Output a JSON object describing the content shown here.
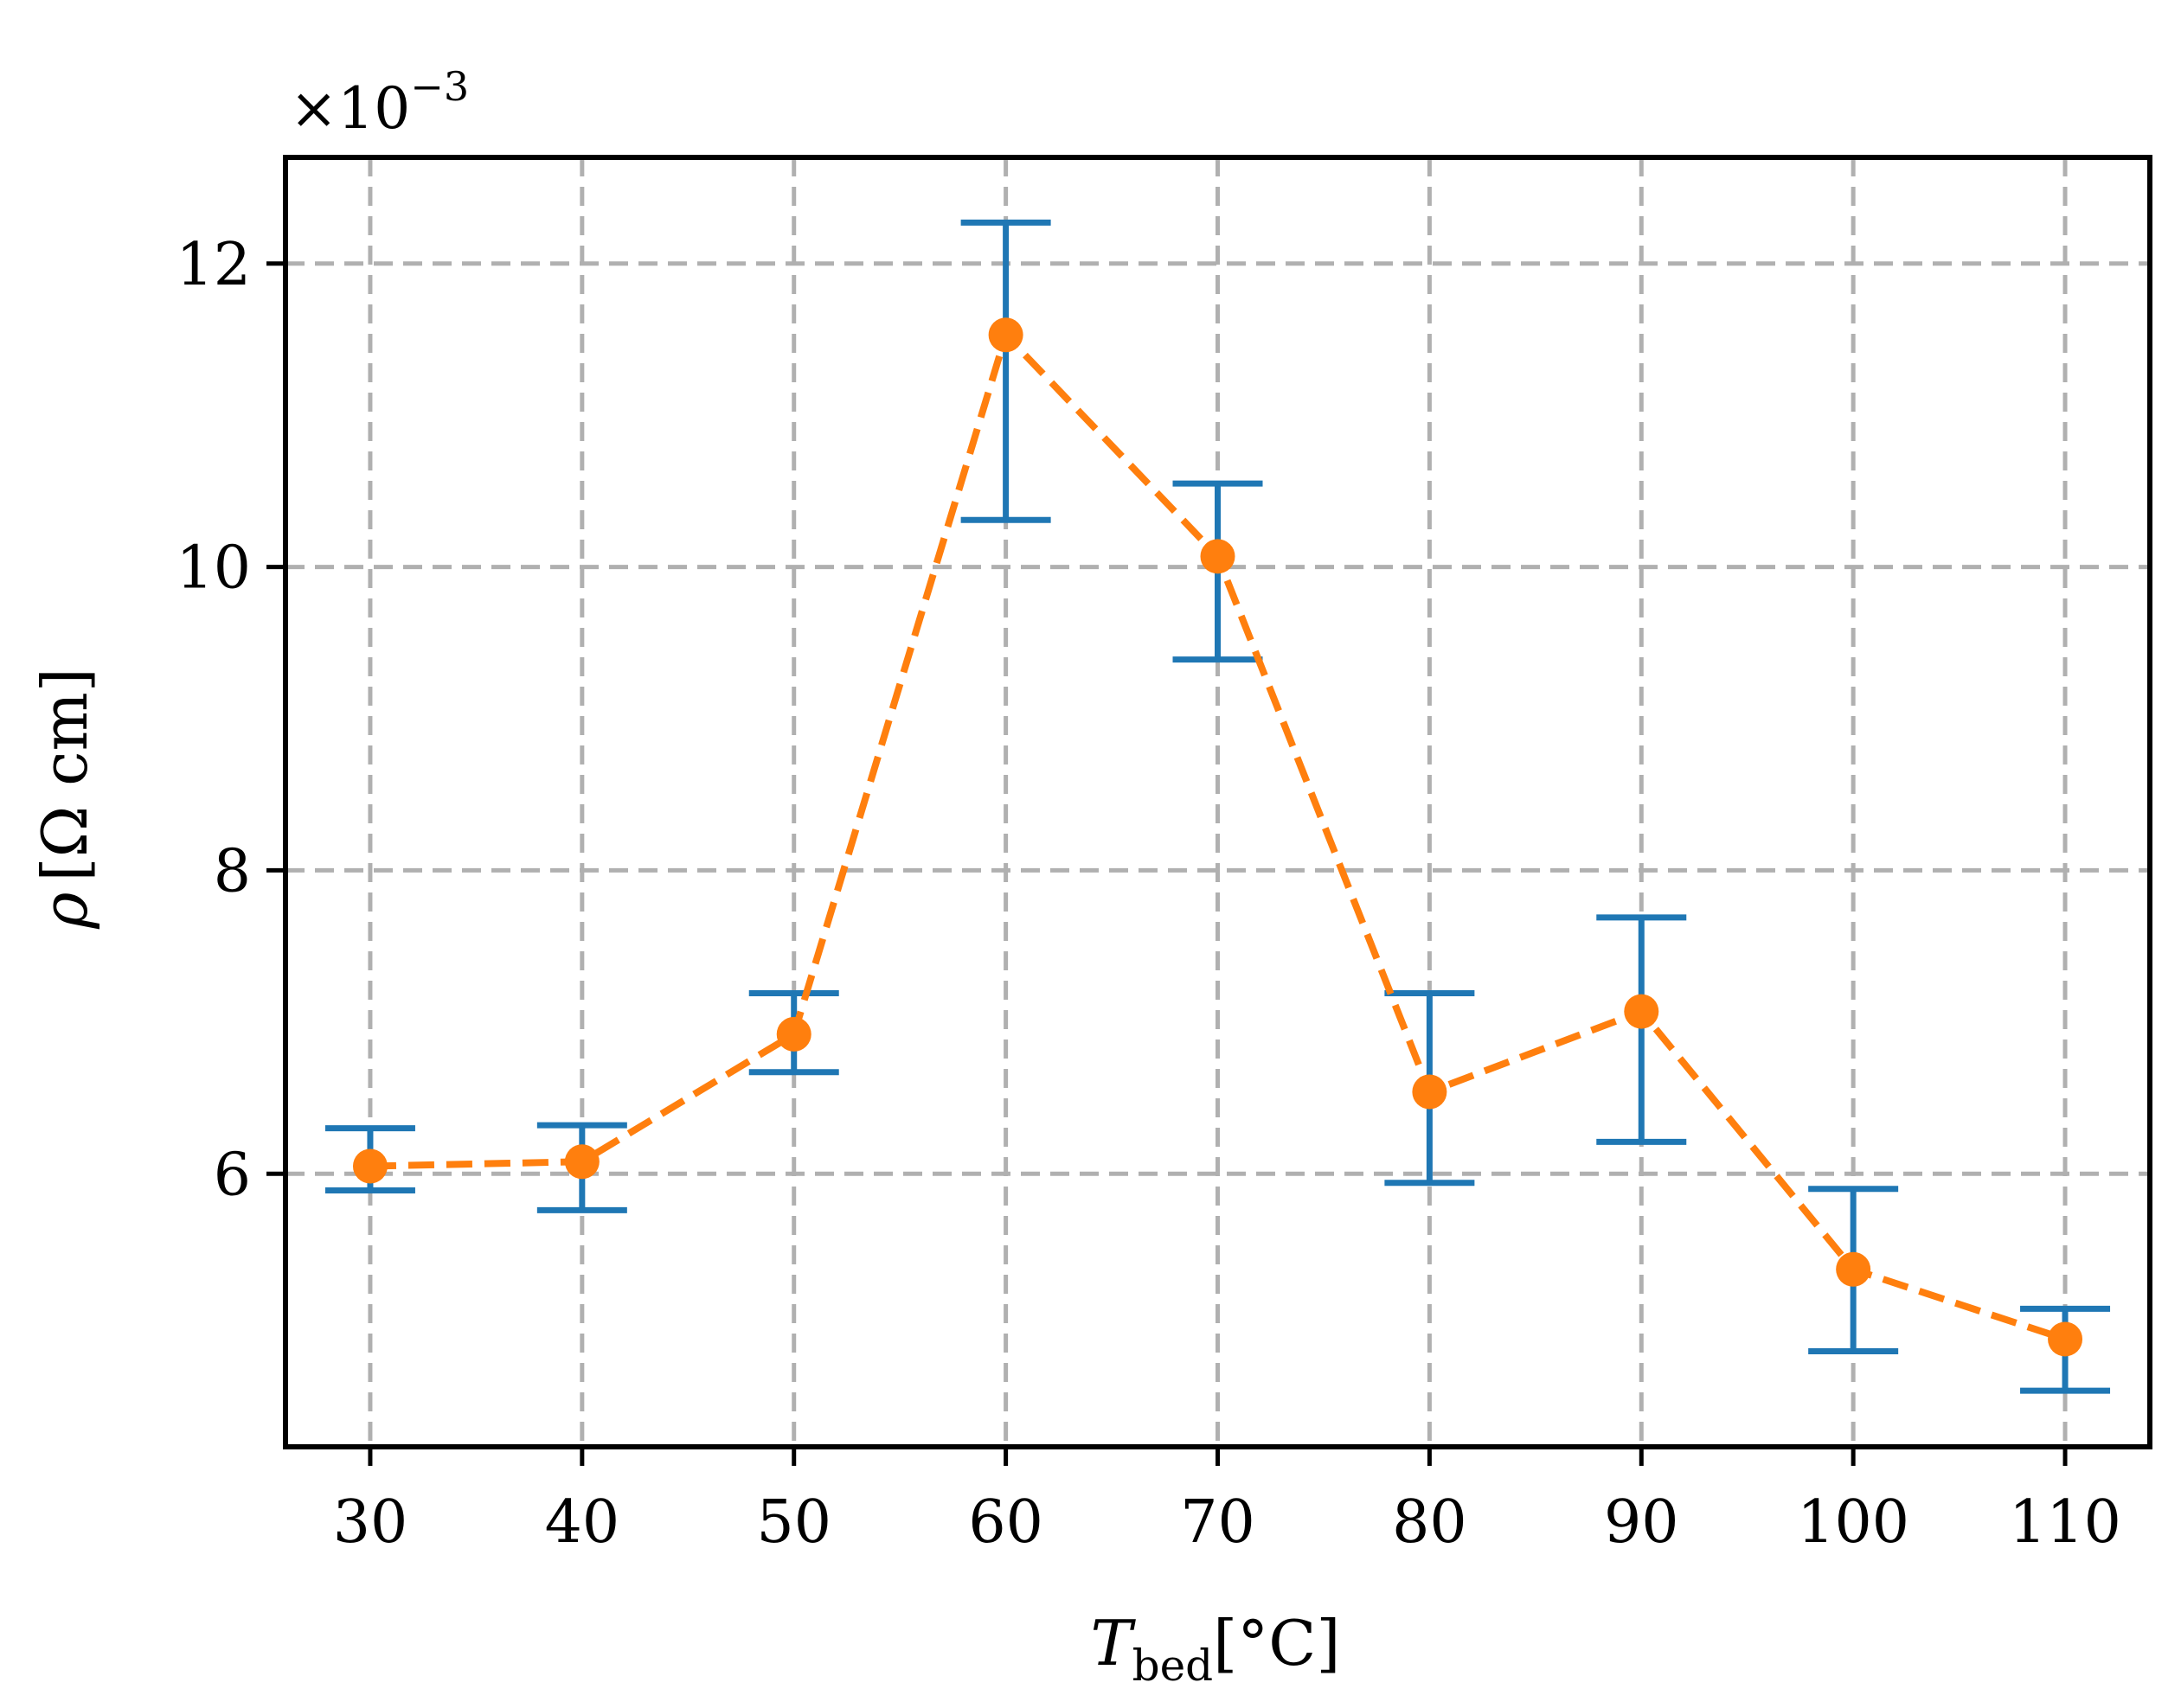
{
  "chart_data": {
    "type": "line",
    "title": "",
    "x": [
      30,
      40,
      50,
      60,
      70,
      80,
      90,
      100,
      110
    ],
    "y_scale_label": {
      "prefix": "×10",
      "exponent": "−3"
    },
    "xlabel": {
      "main": "T",
      "sub": "bed",
      "unit": "[°C]"
    },
    "ylabel": {
      "main": "ρ",
      "unit": "[Ω cm]"
    },
    "xlim": [
      26,
      114
    ],
    "ylim": [
      4.2,
      12.7
    ],
    "xticks": [
      30,
      40,
      50,
      60,
      70,
      80,
      90,
      100,
      110
    ],
    "yticks": [
      6,
      8,
      10,
      12
    ],
    "grid": true,
    "series": [
      {
        "values": [
          6.05,
          6.08,
          6.92,
          11.53,
          10.07,
          6.54,
          7.07,
          5.37,
          4.91
        ],
        "error_low": [
          5.89,
          5.76,
          6.67,
          10.31,
          9.39,
          5.94,
          6.21,
          4.83,
          4.57
        ],
        "error_high": [
          6.3,
          6.32,
          7.19,
          12.27,
          10.55,
          7.19,
          7.69,
          5.9,
          5.11
        ],
        "line_color": "#ff7f0e",
        "errorbar_color": "#1f77b4",
        "line_style": "dashed",
        "marker": "circle"
      }
    ]
  }
}
